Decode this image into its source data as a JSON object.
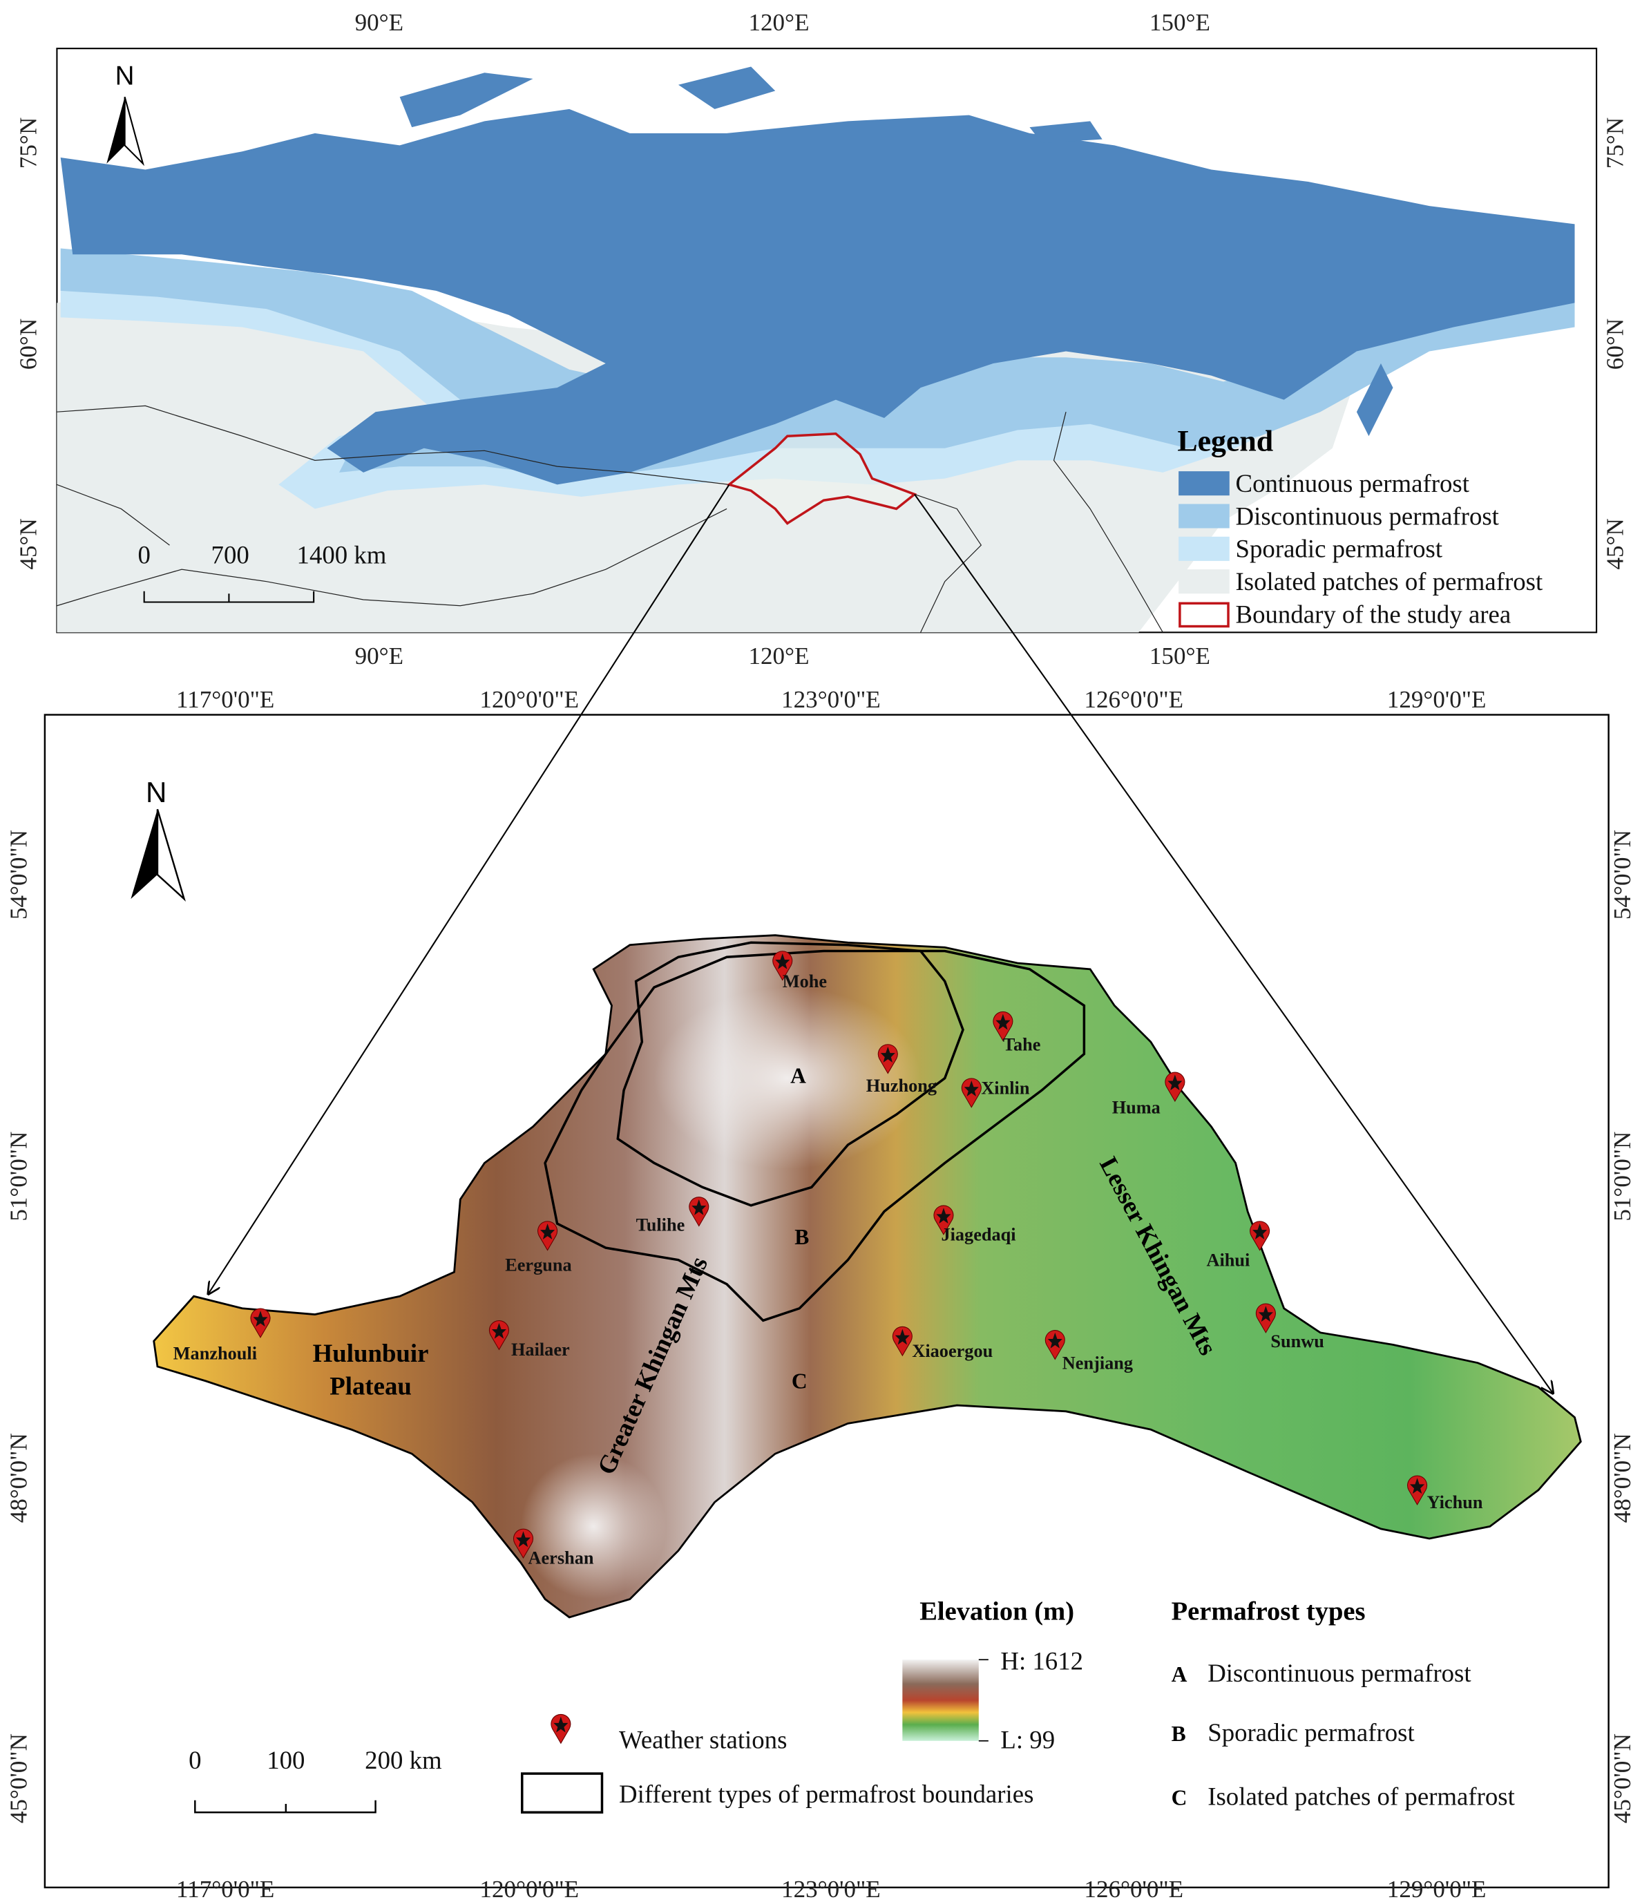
{
  "top_map": {
    "lon_labels": [
      "90°E",
      "120°E",
      "150°E"
    ],
    "lat_labels": [
      "75°N",
      "60°N",
      "45°N"
    ],
    "north": "N",
    "scale": [
      "0",
      "700",
      "1400 km"
    ],
    "legend": {
      "title": "Legend",
      "items": [
        "Continuous permafrost",
        "Discontinuous permafrost",
        "Sporadic permafrost",
        "Isolated patches of permafrost",
        "Boundary of the study area"
      ]
    }
  },
  "bottom_map": {
    "lon_labels": [
      "117°0'0\"E",
      "120°0'0\"E",
      "123°0'0\"E",
      "126°0'0\"E",
      "129°0'0\"E"
    ],
    "lat_labels": [
      "54°0'0\"N",
      "51°0'0\"N",
      "48°0'0\"N",
      "45°0'0\"N"
    ],
    "north": "N",
    "stations": [
      "Mohe",
      "Tahe",
      "Huzhong",
      "Xinlin",
      "Huma",
      "Tulihe",
      "Jiagedaqi",
      "Eerguna",
      "Aihui",
      "Manzhouli",
      "Hailaer",
      "Xiaoergou",
      "Nenjiang",
      "Sunwu",
      "Yichun",
      "Aershan"
    ],
    "zones": [
      "A",
      "B",
      "C"
    ],
    "regions": [
      [
        "Hulunbuir",
        "Plateau"
      ],
      "Greater Khingan Mts",
      "Lesser Khingan Mts"
    ],
    "elevation": {
      "title": "Elevation (m)",
      "high": "H: 1612",
      "low": "L: 99"
    },
    "symbols": {
      "stations": "Weather stations",
      "boundaries": "Different types of permafrost boundaries"
    },
    "types": {
      "title": "Permafrost types",
      "items": [
        {
          "letter": "A",
          "label": "Discontinuous permafrost"
        },
        {
          "letter": "B",
          "label": "Sporadic permafrost"
        },
        {
          "letter": "C",
          "label": "Isolated patches of permafrost"
        }
      ]
    },
    "scale": [
      "0",
      "100",
      "200 km"
    ]
  }
}
